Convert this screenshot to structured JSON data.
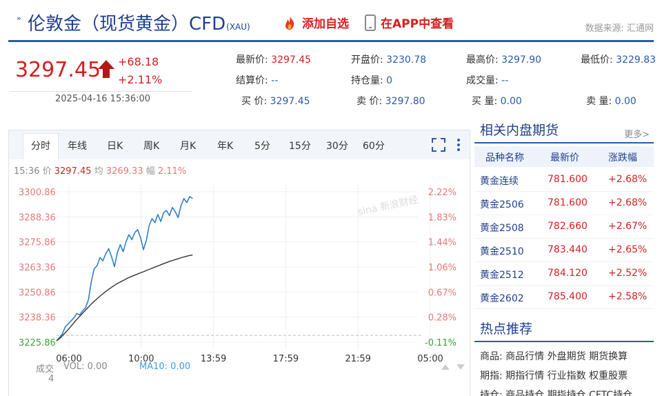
{
  "header": {
    "title": "伦敦金（现货黄金）CFD",
    "title_sub": "(XAU)",
    "add_watch": "添加自选",
    "view_app": "在APP中查看",
    "source": "数据来源: 汇通网"
  },
  "quote": {
    "price": "3297.45",
    "change": "+68.18",
    "change_pct": "+2.11%",
    "time": "2025-04-16 15:36:00",
    "direction": "up"
  },
  "stats": [
    {
      "label": "最新价:",
      "value": "3297.45",
      "red": true
    },
    {
      "label": "开盘价:",
      "value": "3230.78"
    },
    {
      "label": "最高价:",
      "value": "3297.90"
    },
    {
      "label": "最低价:",
      "value": "3229.83"
    },
    {
      "label": "结算价:",
      "value": "--"
    },
    {
      "label": "持仓量:",
      "value": "0"
    },
    {
      "label": "成交量:",
      "value": "--"
    },
    {
      "label": "",
      "value": ""
    },
    {
      "label": "买 价:",
      "value": "3297.45"
    },
    {
      "label": "卖 价:",
      "value": "3297.80"
    },
    {
      "label": "买 量:",
      "value": "0.00"
    },
    {
      "label": "卖 量:",
      "value": "0.00"
    }
  ],
  "tabs": [
    "分时",
    "年线",
    "日K",
    "周K",
    "月K",
    "年K",
    "5分",
    "15分",
    "30分",
    "60分"
  ],
  "active_tab": "分时",
  "info_line": {
    "time": "15:36",
    "price_label": "价",
    "price": "3297.45",
    "avg_label": "均",
    "avg": "3269.33",
    "amp_label": "幅",
    "amp": "2.11%"
  },
  "volume": {
    "label": "成交",
    "count": "4",
    "vol": "VOL: 0.00",
    "ma10": "MA10: 0.00"
  },
  "watermark": "sina 新浪财经",
  "chart_data": {
    "type": "line",
    "y_ticks": [
      "3300.86",
      "3288.36",
      "3275.86",
      "3263.36",
      "3250.86",
      "3238.36",
      "3225.86"
    ],
    "y_pct_ticks": [
      "2.22%",
      "1.83%",
      "1.44%",
      "1.06%",
      "0.67%",
      "0.28%",
      "-0.11%"
    ],
    "x_ticks": [
      "06:00",
      "10:00",
      "13:59",
      "17:59",
      "21:59",
      "05:00"
    ],
    "ylim": [
      3225.86,
      3300.86
    ],
    "prev_close": 3229.27,
    "series": [
      {
        "color": "#2f7fc9",
        "values": [
          3226.5,
          3228.2,
          3230.0,
          3233.5,
          3235.0,
          3236.5,
          3238.0,
          3240.2,
          3239.5,
          3241.5,
          3243.0,
          3247.0,
          3256.0,
          3262.5,
          3264.0,
          3268.0,
          3266.5,
          3270.0,
          3272.5,
          3268.5,
          3263.5,
          3270.5,
          3274.5,
          3271.0,
          3276.0,
          3279.5,
          3277.0,
          3280.5,
          3282.0,
          3278.0,
          3272.0,
          3276.5,
          3284.0,
          3287.5,
          3285.5,
          3289.5,
          3286.0,
          3290.5,
          3291.5,
          3289.0,
          3293.0,
          3291.0,
          3288.0,
          3294.0,
          3297.5,
          3295.5,
          3298.5,
          3297.45
        ]
      },
      {
        "color": "#333333",
        "values": [
          3226.5,
          3228.0,
          3230.0,
          3232.0,
          3234.2,
          3236.5,
          3238.5,
          3240.5,
          3242.5,
          3244.5,
          3246.3,
          3248.0,
          3249.6,
          3251.1,
          3252.5,
          3253.8,
          3255.0,
          3256.0,
          3257.0,
          3258.0,
          3258.8,
          3259.5,
          3260.3,
          3261.0,
          3261.8,
          3262.5,
          3263.3,
          3264.0,
          3264.8,
          3265.5,
          3266.2,
          3266.8,
          3267.4,
          3268.0,
          3268.5,
          3269.0,
          3269.33
        ]
      }
    ]
  },
  "side": {
    "title": "相关内盘期货",
    "more": "更多>",
    "headers": [
      "品种名称",
      "最新价",
      "涨跌幅"
    ],
    "rows": [
      {
        "name": "黄金连续",
        "last": "781.600",
        "pct": "+2.68%"
      },
      {
        "name": "黄金2506",
        "last": "781.600",
        "pct": "+2.68%"
      },
      {
        "name": "黄金2508",
        "last": "782.660",
        "pct": "+2.67%"
      },
      {
        "name": "黄金2510",
        "last": "783.440",
        "pct": "+2.65%"
      },
      {
        "name": "黄金2512",
        "last": "784.120",
        "pct": "+2.52%"
      },
      {
        "name": "黄金2602",
        "last": "785.400",
        "pct": "+2.58%"
      }
    ],
    "hot_title": "热点推荐",
    "hot_rows": [
      {
        "key": "商品:",
        "links": [
          "商品行情",
          "外盘期货",
          "期货换算"
        ]
      },
      {
        "key": "期指:",
        "links": [
          "期指行情",
          "行业指数",
          "权重股票"
        ]
      },
      {
        "key": "持仓:",
        "links": [
          "商品持仓",
          "期指持仓",
          "CFTC持仓"
        ]
      }
    ]
  },
  "colors": {
    "up": "#d32020",
    "brand": "#1f3f8f",
    "price_line": "#2f7fc9",
    "avg_line": "#333333"
  }
}
